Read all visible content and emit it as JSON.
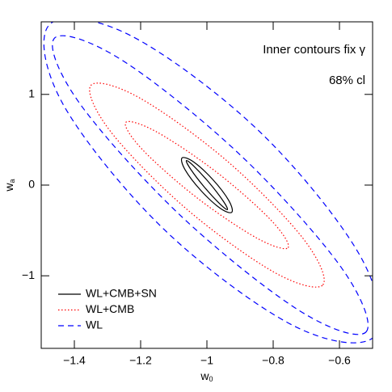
{
  "chart_data": {
    "type": "contour",
    "annotations": [
      "Inner contours fix γ",
      "68% cl"
    ],
    "xlabel": [
      "w",
      "0"
    ],
    "ylabel": [
      "w",
      "a"
    ],
    "xlim": [
      -1.5,
      -0.5
    ],
    "ylim": [
      -1.8,
      1.8
    ],
    "xticks": [
      {
        "value": -1.4,
        "label": "−1.4"
      },
      {
        "value": -1.2,
        "label": "−1.2"
      },
      {
        "value": -1,
        "label": "−1"
      },
      {
        "value": -0.8,
        "label": "−0.8"
      },
      {
        "value": -0.6,
        "label": "−0.6"
      }
    ],
    "yticks": [
      {
        "value": -1,
        "label": "−1"
      },
      0,
      1
    ],
    "legend": "lower left",
    "series": [
      {
        "name": "WL+CMB+SN",
        "color": "#000000",
        "dash": "solid",
        "contours": [
          {
            "x": [
              -0.938,
              -0.951,
              -0.9925,
              -1.039,
              -1.062,
              -1.049,
              -1.0075,
              -0.961
            ],
            "y": [
              -0.27,
              -0.175,
              0.023,
              0.207,
              0.27,
              0.175,
              -0.023,
              -0.207
            ]
          },
          {
            "x": [
              -0.925,
              -0.934,
              -0.982,
              -1.04,
              -1.075,
              -1.066,
              -1.018,
              -0.96
            ],
            "y": [
              -0.3,
              -0.17,
              0.06,
              0.255,
              0.3,
              0.17,
              -0.06,
              -0.255
            ]
          }
        ]
      },
      {
        "name": "WL+CMB",
        "color": "#ff0000",
        "dash": "dotted",
        "contours": [
          {
            "x": [
              -0.755,
              -0.806,
              -0.97,
              -1.152,
              -1.245,
              -1.194,
              -1.03,
              -0.848
            ],
            "y": [
              -0.69,
              -0.389,
              0.14,
              0.587,
              0.69,
              0.389,
              -0.14,
              -0.587
            ]
          },
          {
            "x": [
              -0.65,
              -0.709,
              -0.938,
              -1.204,
              -1.35,
              -1.291,
              -1.062,
              -0.796
            ],
            "y": [
              -1.1,
              -0.592,
              0.262,
              0.963,
              1.1,
              0.592,
              -0.262,
              -0.963
            ]
          }
        ]
      },
      {
        "name": "WL",
        "color": "#0000ff",
        "dash": "dashed",
        "contours": [
          {
            "x": [
              -0.52,
              -0.595,
              -0.901,
              -1.259,
              -1.46,
              -1.385,
              -1.079,
              -0.721
            ],
            "y": [
              -1.62,
              -0.906,
              0.338,
              1.384,
              1.62,
              0.906,
              -0.338,
              -1.384
            ]
          },
          {
            "x": [
              -0.495,
              -0.537,
              -0.841,
              -1.23,
              -1.475,
              -1.433,
              -1.129,
              -0.74
            ],
            "y": [
              -1.67,
              -0.784,
              0.59,
              1.648,
              1.77,
              0.884,
              -0.49,
              -1.548
            ]
          }
        ]
      }
    ]
  }
}
